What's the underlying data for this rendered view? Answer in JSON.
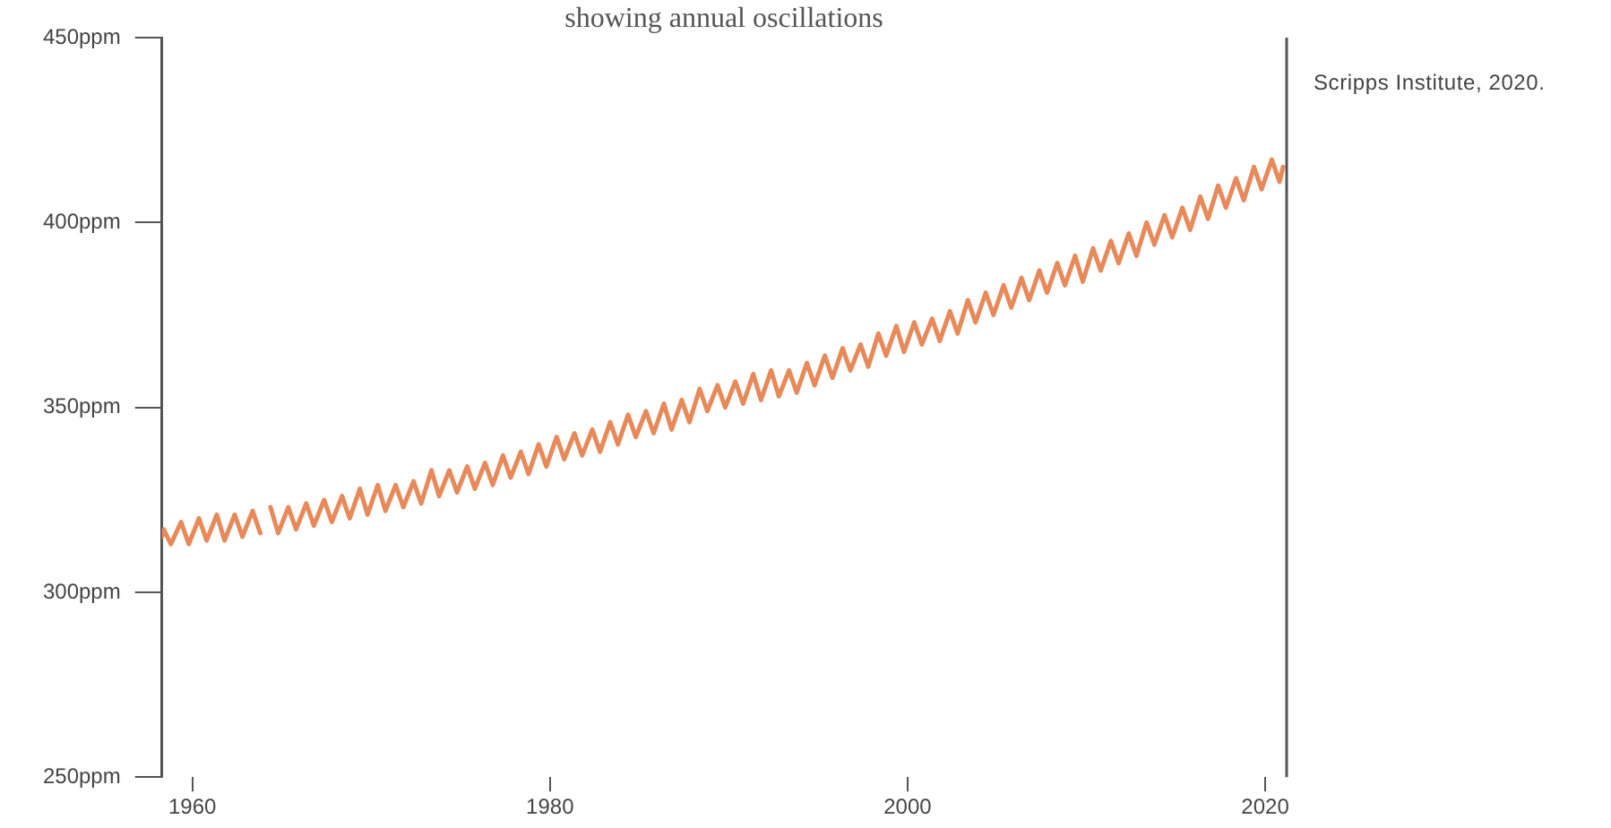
{
  "chart_data": {
    "type": "line",
    "subtitle": "showing annual oscillations",
    "annotations": [
      "Scripps Institute, 2020."
    ],
    "xlim": [
      1958.3,
      2021.2
    ],
    "xticks": [
      1960,
      1980,
      2000,
      2020
    ],
    "ylim": [
      250,
      450
    ],
    "yticks": [
      {
        "value": 250,
        "label": "250ppm"
      },
      {
        "value": 300,
        "label": "300ppm"
      },
      {
        "value": 350,
        "label": "350ppm"
      },
      {
        "value": 400,
        "label": "400ppm"
      },
      {
        "value": 450,
        "label": "450ppm"
      }
    ],
    "grid": false,
    "legend": false,
    "marker": "none",
    "line_style": "solid",
    "series": [
      {
        "color": "#e8895a",
        "x": [
          1958.3,
          1958.4,
          1958.8,
          1959.37,
          1959.8,
          1960.37,
          1960.8,
          1961.37,
          1961.8,
          1962.37,
          1962.8,
          1963.37,
          1963.8,
          1964.0,
          1964.37,
          1964.8,
          1965.37,
          1965.8,
          1966.37,
          1966.8,
          1967.37,
          1967.8,
          1968.37,
          1968.8,
          1969.37,
          1969.8,
          1970.37,
          1970.8,
          1971.37,
          1971.8,
          1972.37,
          1972.8,
          1973.37,
          1973.8,
          1974.37,
          1974.8,
          1975.37,
          1975.8,
          1976.37,
          1976.8,
          1977.37,
          1977.8,
          1978.37,
          1978.8,
          1979.37,
          1979.8,
          1980.37,
          1980.8,
          1981.37,
          1981.8,
          1982.37,
          1982.8,
          1983.37,
          1983.8,
          1984.37,
          1984.8,
          1985.37,
          1985.8,
          1986.37,
          1986.8,
          1987.37,
          1987.8,
          1988.37,
          1988.8,
          1989.37,
          1989.8,
          1990.37,
          1990.8,
          1991.37,
          1991.8,
          1992.37,
          1992.8,
          1993.37,
          1993.8,
          1994.37,
          1994.8,
          1995.37,
          1995.8,
          1996.37,
          1996.8,
          1997.37,
          1997.8,
          1998.37,
          1998.8,
          1999.37,
          1999.8,
          2000.37,
          2000.8,
          2001.37,
          2001.8,
          2002.37,
          2002.8,
          2003.37,
          2003.8,
          2004.37,
          2004.8,
          2005.37,
          2005.8,
          2006.37,
          2006.8,
          2007.37,
          2007.8,
          2008.37,
          2008.8,
          2009.37,
          2009.8,
          2010.37,
          2010.8,
          2011.37,
          2011.8,
          2012.37,
          2012.8,
          2013.37,
          2013.8,
          2014.37,
          2014.8,
          2015.37,
          2015.8,
          2016.37,
          2016.8,
          2017.37,
          2017.8,
          2018.37,
          2018.8,
          2019.37,
          2019.8,
          2020.37,
          2020.8,
          2021.0
        ],
        "values": [
          315,
          317,
          313,
          319,
          313,
          320,
          314,
          321,
          314,
          321,
          315,
          322,
          316,
          null,
          323,
          316,
          323,
          317,
          324,
          318,
          325,
          319,
          326,
          320,
          328,
          321,
          329,
          322,
          329,
          323,
          330,
          324,
          333,
          326,
          333,
          327,
          334,
          328,
          335,
          329,
          337,
          331,
          338,
          332,
          340,
          334,
          342,
          336,
          343,
          337,
          344,
          338,
          346,
          340,
          348,
          342,
          349,
          343,
          351,
          344,
          352,
          346,
          355,
          349,
          356,
          350,
          357,
          351,
          359,
          352,
          360,
          353,
          360,
          354,
          362,
          356,
          364,
          358,
          366,
          360,
          367,
          361,
          370,
          364,
          372,
          365,
          373,
          367,
          374,
          368,
          376,
          370,
          379,
          373,
          381,
          375,
          383,
          377,
          385,
          379,
          387,
          381,
          389,
          383,
          391,
          384,
          393,
          387,
          395,
          389,
          397,
          391,
          400,
          394,
          402,
          396,
          404,
          398,
          407,
          401,
          410,
          404,
          412,
          406,
          415,
          409,
          417,
          411,
          415
        ]
      }
    ]
  }
}
